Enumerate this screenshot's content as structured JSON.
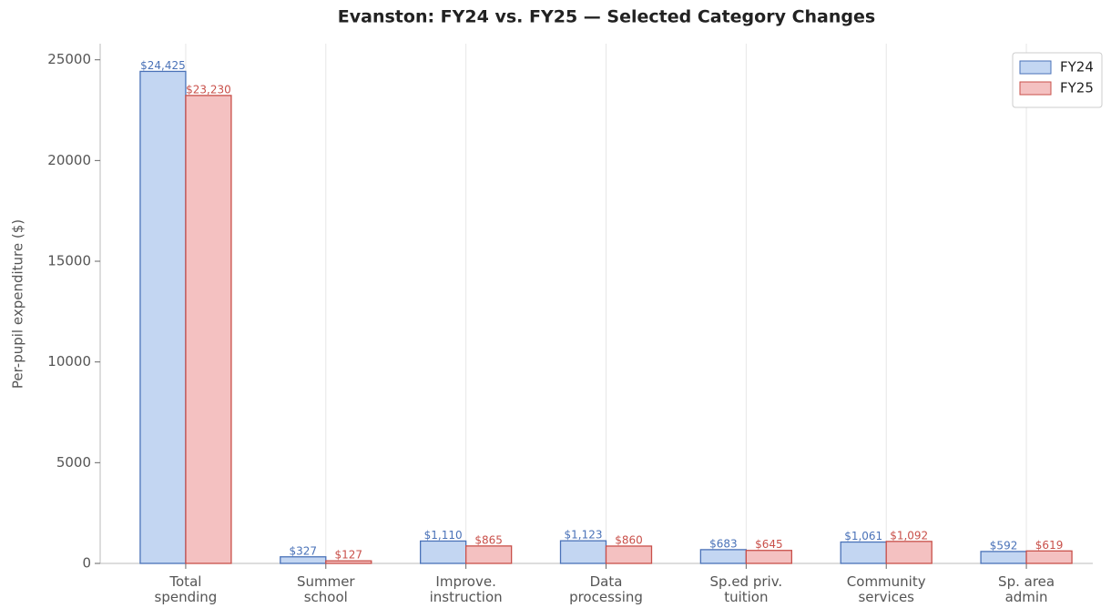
{
  "chart_data": {
    "type": "bar",
    "title": "Evanston: FY24 vs. FY25 — Selected Category Changes",
    "y_label": "Per-pupil expenditure ($)",
    "categories": [
      "Total\nspending",
      "Summer\nschool",
      "Improve.\ninstruction",
      "Data\nprocessing",
      "Sp.ed priv.\ntuition",
      "Community\nservices",
      "Sp. area\nadmin"
    ],
    "series": [
      {
        "name": "FY24",
        "color": "#c3d6f2",
        "edge_color": "#4a72b8",
        "values": [
          24425,
          327,
          1110,
          1123,
          683,
          1061,
          592
        ],
        "value_labels": [
          "$24,425",
          "$327",
          "$1,110",
          "$1,123",
          "$683",
          "$1,061",
          "$592"
        ]
      },
      {
        "name": "FY25",
        "color": "#f4c1c1",
        "edge_color": "#c9504a",
        "values": [
          23230,
          127,
          865,
          860,
          645,
          1092,
          619
        ],
        "value_labels": [
          "$23,230",
          "$127",
          "$865",
          "$860",
          "$645",
          "$1,092",
          "$619"
        ]
      }
    ],
    "ylim": [
      0,
      25800
    ],
    "yticks": [
      0,
      5000,
      10000,
      15000,
      20000,
      25000
    ],
    "grid": "x",
    "legend": "upper right"
  }
}
